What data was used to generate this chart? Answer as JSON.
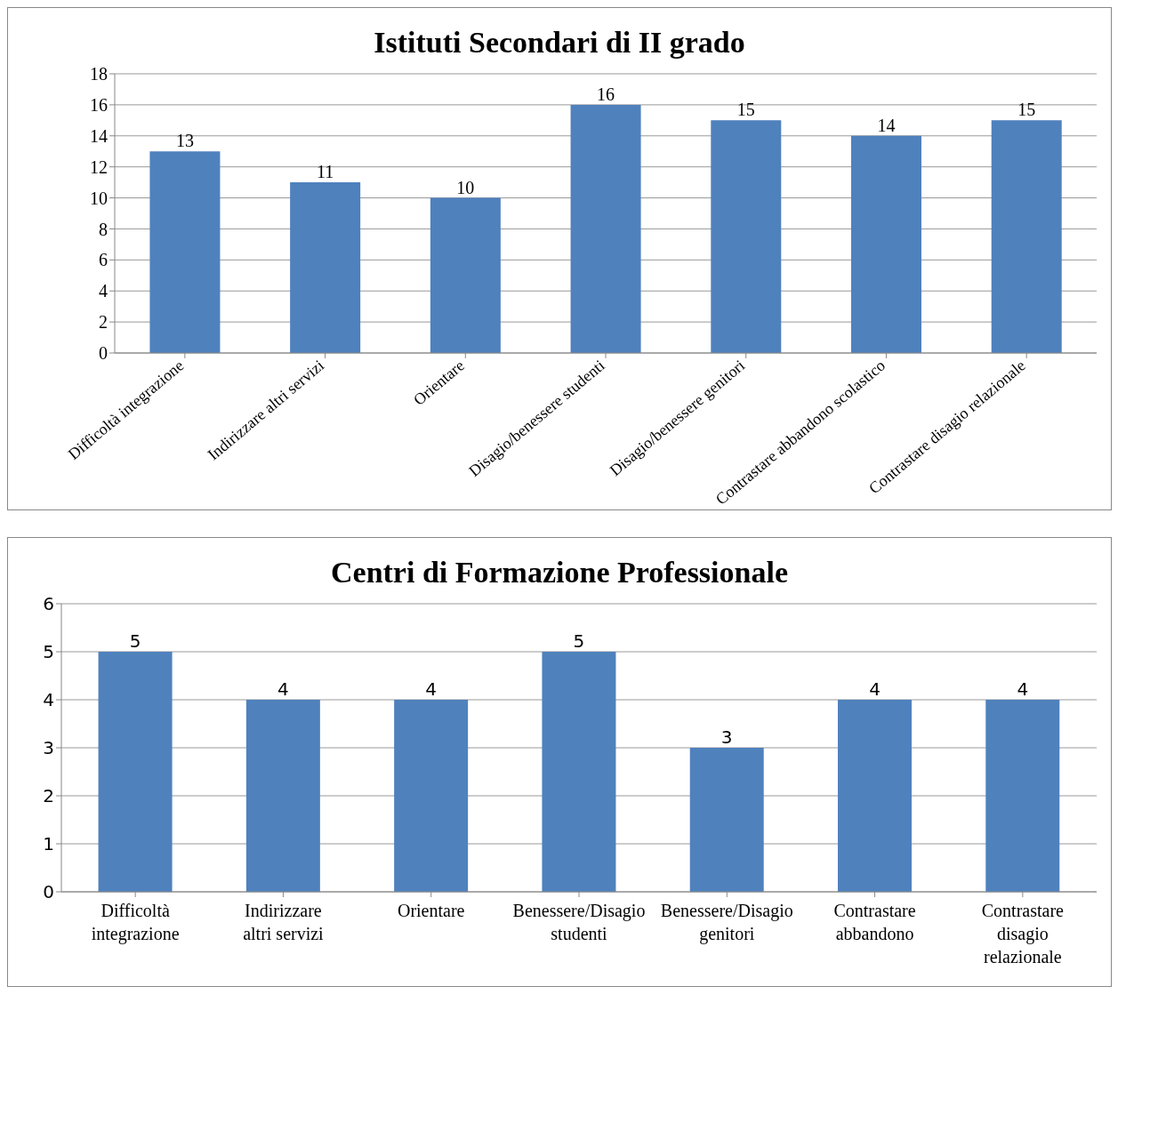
{
  "chart_data": [
    {
      "type": "bar",
      "title": "Istituti Secondari di II grado",
      "categories": [
        "Difficoltà integrazione",
        "Indirizzare altri servizi",
        "Orientare",
        "Disagio/benessere studenti",
        "Disagio/benessere genitori",
        "Contrastare abbandono scolastico",
        "Contrastare disagio relazionale"
      ],
      "values": [
        13,
        11,
        10,
        16,
        15,
        14,
        15
      ],
      "color": "#4f81bd",
      "ylim": [
        0,
        18
      ],
      "yticks": [
        0,
        2,
        4,
        6,
        8,
        10,
        12,
        14,
        16,
        18
      ],
      "grid": "y",
      "data_labels": true
    },
    {
      "type": "bar",
      "title": "Centri di Formazione Professionale",
      "categories": [
        "Difficoltà integrazione",
        "Indirizzare altri servizi",
        "Orientare",
        "Benessere/Disagio studenti",
        "Benessere/Disagio genitori",
        "Contrastare abbandono",
        "Contrastare disagio relazionale"
      ],
      "values": [
        5,
        4,
        4,
        5,
        3,
        4,
        4
      ],
      "color": "#4f81bd",
      "ylim": [
        0,
        6
      ],
      "yticks": [
        0,
        1,
        2,
        3,
        4,
        5,
        6
      ],
      "grid": "y",
      "data_labels": true
    }
  ]
}
